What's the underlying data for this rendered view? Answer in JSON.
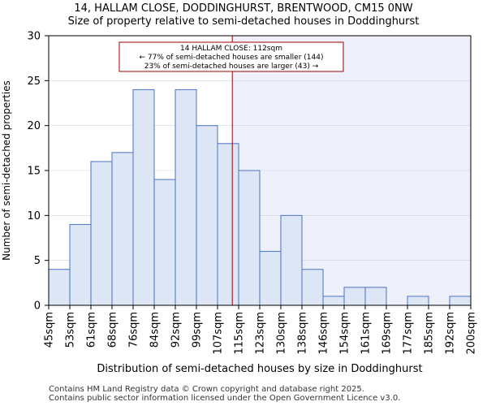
{
  "title_line1": "14, HALLAM CLOSE, DODDINGHURST, BRENTWOOD, CM15 0NW",
  "title_line2": "Size of property relative to semi-detached houses in Doddinghurst",
  "footer_line1": "Contains HM Land Registry data © Crown copyright and database right 2025.",
  "footer_line2": "Contains public sector information licensed under the Open Government Licence v3.0.",
  "colors": {
    "bar_fill": "#dce6f5",
    "bar_stroke": "#4a72c4",
    "marker": "#a00000",
    "highlight_bg": "#eef1fb"
  },
  "chart_data": {
    "type": "bar",
    "title": "Size of property relative to semi-detached houses in Doddinghurst",
    "xlabel": "Distribution of semi-detached houses by size in Doddinghurst",
    "ylabel": "Number of semi-detached properties",
    "ylim": [
      0,
      30
    ],
    "yticks": [
      0,
      5,
      10,
      15,
      20,
      25,
      30
    ],
    "tick_labels": [
      "45sqm",
      "53sqm",
      "61sqm",
      "68sqm",
      "76sqm",
      "84sqm",
      "92sqm",
      "99sqm",
      "107sqm",
      "115sqm",
      "123sqm",
      "130sqm",
      "138sqm",
      "146sqm",
      "154sqm",
      "161sqm",
      "169sqm",
      "177sqm",
      "185sqm",
      "192sqm",
      "200sqm"
    ],
    "values": [
      4,
      9,
      16,
      17,
      24,
      14,
      24,
      20,
      18,
      15,
      6,
      10,
      4,
      1,
      2,
      2,
      0,
      1,
      0,
      1
    ],
    "marker_bin_position": 8.7,
    "annotation": {
      "line1": "14 HALLAM CLOSE: 112sqm",
      "line2": "← 77% of semi-detached houses are smaller (144)",
      "line3": "23% of semi-detached houses are larger (43) →"
    }
  }
}
